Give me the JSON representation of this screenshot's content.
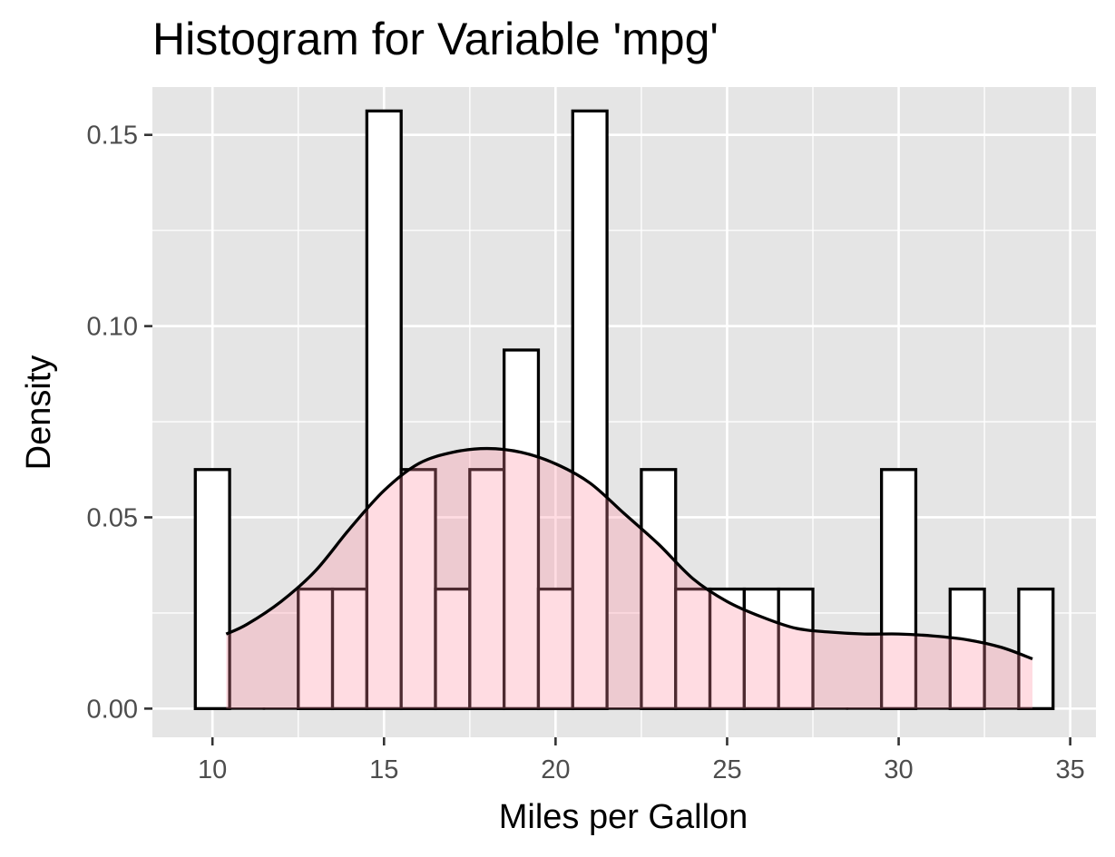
{
  "chart_data": {
    "type": "bar",
    "title": "Histogram for Variable 'mpg'",
    "xlabel": "Miles per Gallon",
    "ylabel": "Density",
    "xlim": [
      8.25,
      35.75
    ],
    "ylim": [
      -0.0075,
      0.1625
    ],
    "x_ticks": [
      10,
      15,
      20,
      25,
      30,
      35
    ],
    "x_tick_labels": [
      "10",
      "15",
      "20",
      "25",
      "30",
      "35"
    ],
    "y_ticks": [
      0.0,
      0.05,
      0.1,
      0.15
    ],
    "y_tick_labels": [
      "0.00",
      "0.05",
      "0.10",
      "0.15"
    ],
    "grid": true,
    "bin_width": 1,
    "bins": {
      "x_start": [
        9.5,
        10.5,
        11.5,
        12.5,
        13.5,
        14.5,
        15.5,
        16.5,
        17.5,
        18.5,
        19.5,
        20.5,
        21.5,
        22.5,
        23.5,
        24.5,
        25.5,
        26.5,
        27.5,
        28.5,
        29.5,
        30.5,
        31.5,
        32.5,
        33.5
      ],
      "density": [
        0.0625,
        0,
        0,
        0.03125,
        0.03125,
        0.15625,
        0.0625,
        0.03125,
        0.0625,
        0.09375,
        0.03125,
        0.15625,
        0,
        0.0625,
        0.03125,
        0.03125,
        0.03125,
        0.03125,
        0,
        0,
        0.0625,
        0,
        0.03125,
        0,
        0.03125
      ]
    },
    "density_curve": {
      "x": [
        10.4,
        11,
        12,
        13,
        14,
        15,
        16,
        17,
        18,
        19,
        20,
        21,
        22,
        23,
        24,
        25,
        26,
        27,
        28,
        29,
        30,
        31,
        32,
        33,
        33.9
      ],
      "y": [
        0.0195,
        0.022,
        0.028,
        0.036,
        0.047,
        0.057,
        0.064,
        0.067,
        0.068,
        0.067,
        0.064,
        0.059,
        0.051,
        0.043,
        0.034,
        0.028,
        0.024,
        0.021,
        0.02,
        0.0195,
        0.0195,
        0.019,
        0.018,
        0.016,
        0.013
      ]
    },
    "colors": {
      "panel_background": "#e5e5e5",
      "grid": "#ffffff",
      "bar_fill": "#ffffff",
      "bar_outline": "#000000",
      "density_fill": "#ff8ca0",
      "density_line": "#000000"
    }
  }
}
